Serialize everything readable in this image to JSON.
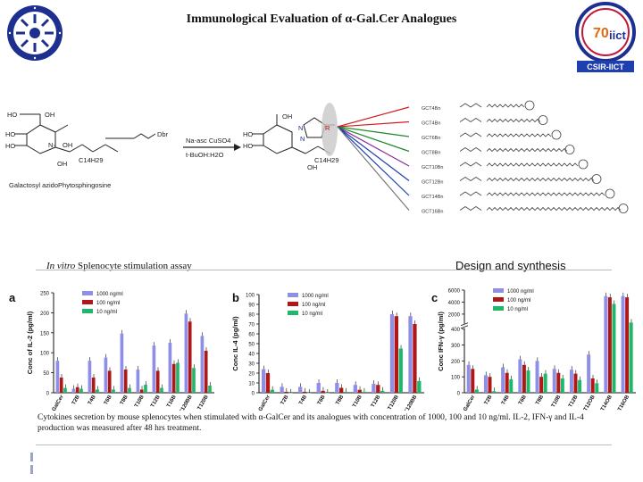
{
  "title": "Immunological Evaluation of α-Gal.Cer Analogues",
  "logo_right_text": "CSIR-IICT",
  "scheme": {
    "reagents_1": "Na-asc CuSO4",
    "reagents_2": "t-BuOH:H2O",
    "start_label": "Galactosyl azidoPhytosphingosine",
    "chain_label": "C14H29",
    "chain_label_2": "C14H29",
    "alkyne_label": "Dbr",
    "ring_label": "R",
    "products": [
      "GCT4Bn",
      "GCT4Bn",
      "GCT6Bn",
      "GCT8Bn",
      "GCT10Bn",
      "GCT12Bn",
      "GCT14Bn",
      "GCT16Bn"
    ],
    "arrow_colors": [
      "#d01c1c",
      "#d01c1c",
      "#1a8a2a",
      "#1a8a2a",
      "#8a2aa0",
      "#1d3fb0",
      "#1d3fb0",
      "#777777"
    ]
  },
  "captions": {
    "left_italic": "In vitro",
    "left_rest": " Splenocyte stimulation assay",
    "right": "Design and synthesis"
  },
  "footer": "Cytokines secretion by mouse splenocytes when stimulated with α-GalCer and its analogues with concentration of 1000, 100 and 10 ng/ml. IL-2, IFN-γ and IL-4 production was measured after 48 hrs treatment.",
  "legend": [
    "1000 ng/ml",
    "100 ng/ml",
    "10 ng/ml"
  ],
  "series_colors": [
    "#8f8fe8",
    "#b01818",
    "#1fb86a"
  ],
  "chart_data": [
    {
      "type": "bar",
      "panel": "a",
      "ylabel": "Conc of IL-2 (pg/ml)",
      "ylim": [
        0,
        250
      ],
      "yticks": [
        0,
        50,
        100,
        150,
        200,
        250
      ],
      "categories": [
        "GalCer",
        "T2B",
        "T4B",
        "T6B",
        "T8B",
        "T10B",
        "T12B",
        "T16B",
        "T120BB",
        "T120B"
      ],
      "series": [
        {
          "name": "1000 ng/ml",
          "values": [
            80,
            10,
            80,
            88,
            148,
            58,
            118,
            125,
            198,
            142
          ]
        },
        {
          "name": "100 ng/ml",
          "values": [
            38,
            14,
            38,
            55,
            58,
            8,
            55,
            72,
            178,
            105
          ]
        },
        {
          "name": "10 ng/ml",
          "values": [
            12,
            10,
            8,
            8,
            12,
            20,
            12,
            75,
            62,
            18
          ]
        }
      ]
    },
    {
      "type": "bar",
      "panel": "b",
      "ylabel": "Conc IL-4 (pg/ml)",
      "ylim": [
        0,
        100
      ],
      "yticks": [
        0,
        10,
        20,
        30,
        40,
        50,
        60,
        70,
        80,
        90,
        100
      ],
      "categories": [
        "GalCer",
        "T2B",
        "T4B",
        "T6B",
        "T8B",
        "T10B",
        "T12B",
        "T120B",
        "T120BB"
      ],
      "series": [
        {
          "name": "1000 ng/ml",
          "values": [
            24,
            6,
            6,
            10,
            10,
            8,
            9,
            80,
            78
          ]
        },
        {
          "name": "100 ng/ml",
          "values": [
            20,
            1,
            1,
            2,
            5,
            3,
            8,
            78,
            70
          ]
        },
        {
          "name": "10 ng/ml",
          "values": [
            3,
            0,
            0,
            0,
            1,
            1,
            2,
            45,
            12
          ]
        }
      ]
    },
    {
      "type": "bar",
      "panel": "c",
      "ylabel": "Conc IFN-γ (pg/ml)",
      "ylim": [
        0,
        6000
      ],
      "yticks": [
        0,
        100,
        200,
        300,
        400,
        2000,
        4000,
        6000
      ],
      "categories": [
        "GalCer",
        "T2B",
        "T4B",
        "T6B",
        "T8B",
        "T10B",
        "T12B",
        "T12OB",
        "T14OB",
        "T16OB"
      ],
      "series": [
        {
          "name": "1000 ng/ml",
          "values": [
            175,
            110,
            160,
            210,
            200,
            150,
            145,
            240,
            5000,
            5000
          ]
        },
        {
          "name": "100 ng/ml",
          "values": [
            150,
            100,
            125,
            175,
            100,
            125,
            120,
            90,
            4800,
            4800
          ]
        },
        {
          "name": "10 ng/ml",
          "values": [
            20,
            10,
            85,
            140,
            120,
            90,
            80,
            60,
            3700,
            600
          ]
        }
      ]
    }
  ]
}
